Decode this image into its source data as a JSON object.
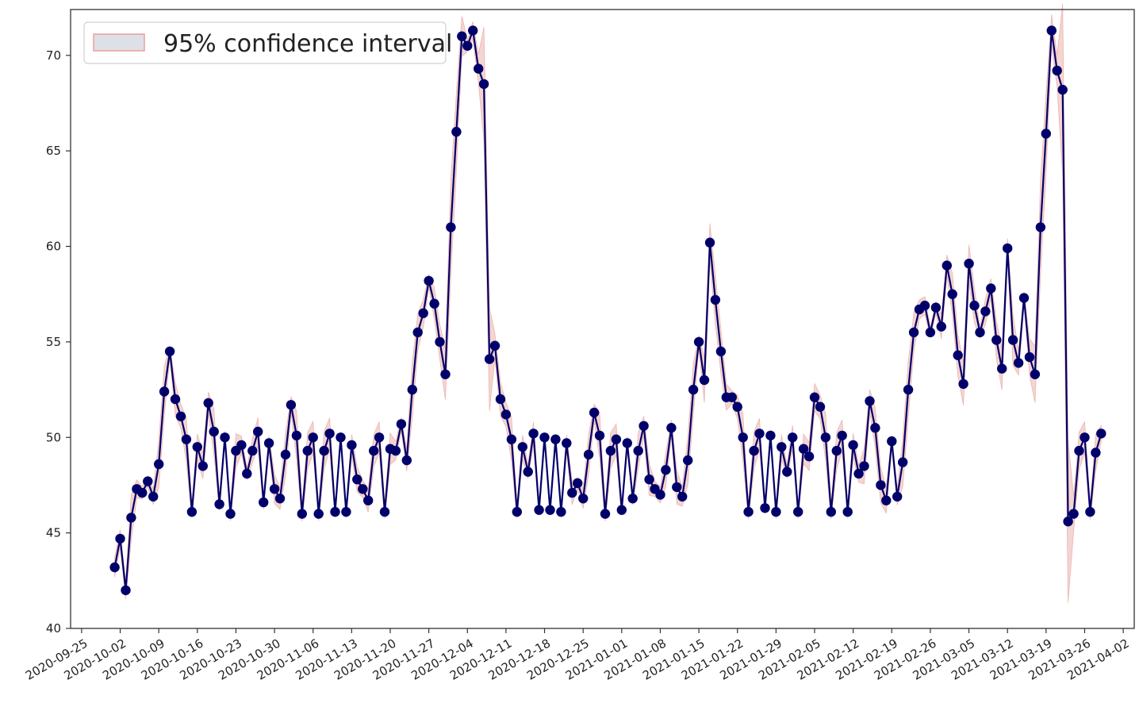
{
  "chart_data": {
    "type": "line",
    "title": "",
    "xlabel": "",
    "ylabel": "",
    "legend": {
      "position": "top-left",
      "entries": [
        "95% confidence interval"
      ]
    },
    "grid": false,
    "xlim": [
      "2020-09-23",
      "2021-04-04"
    ],
    "ylim": [
      40,
      72.4
    ],
    "x_ticks": [
      "2020-09-25",
      "2020-10-02",
      "2020-10-09",
      "2020-10-16",
      "2020-10-23",
      "2020-10-30",
      "2020-11-06",
      "2020-11-13",
      "2020-11-20",
      "2020-11-27",
      "2020-12-04",
      "2020-12-11",
      "2020-12-18",
      "2020-12-25",
      "2021-01-01",
      "2021-01-08",
      "2021-01-15",
      "2021-01-22",
      "2021-01-29",
      "2021-02-05",
      "2021-02-12",
      "2021-02-19",
      "2021-02-26",
      "2021-03-05",
      "2021-03-12",
      "2021-03-19",
      "2021-03-26",
      "2021-04-02"
    ],
    "y_ticks": [
      40,
      45,
      50,
      55,
      60,
      65,
      70
    ],
    "x_start": "2020-10-01",
    "series": [
      {
        "line_color": "#00006b",
        "ci_color": "#e8a09a",
        "values": [
          43.2,
          44.7,
          42.0,
          45.8,
          47.3,
          47.1,
          47.7,
          46.9,
          48.6,
          52.4,
          54.5,
          52.0,
          51.1,
          49.9,
          46.1,
          49.5,
          48.5,
          51.8,
          50.3,
          46.5,
          50.0,
          46.0,
          49.3,
          49.6,
          48.1,
          49.3,
          50.3,
          46.6,
          49.7,
          47.3,
          46.8,
          49.1,
          51.7,
          50.1,
          46.0,
          49.3,
          50.0,
          46.0,
          49.3,
          50.2,
          46.1,
          50.0,
          46.1,
          49.6,
          47.8,
          47.3,
          46.7,
          49.3,
          50.0,
          46.1,
          49.4,
          49.3,
          50.7,
          48.8,
          52.5,
          55.5,
          56.5,
          58.2,
          57.0,
          55.0,
          53.3,
          61.0,
          66.0,
          71.0,
          70.5,
          71.3,
          69.3,
          68.5,
          54.1,
          54.8,
          52.0,
          51.2,
          49.9,
          46.1,
          49.5,
          48.2,
          50.2,
          46.2,
          50.0,
          46.2,
          49.9,
          46.1,
          49.7,
          47.1,
          47.6,
          46.8,
          49.1,
          51.3,
          50.1,
          46.0,
          49.3,
          49.9,
          46.2,
          49.7,
          46.8,
          49.3,
          50.6,
          47.8,
          47.3,
          47.0,
          48.3,
          50.5,
          47.4,
          46.9,
          48.8,
          52.5,
          55.0,
          53.0,
          60.2,
          57.2,
          54.5,
          52.1,
          52.1,
          51.6,
          50.0,
          46.1,
          49.3,
          50.2,
          46.3,
          50.1,
          46.1,
          49.5,
          48.2,
          50.0,
          46.1,
          49.4,
          49.0,
          52.1,
          51.6,
          50.0,
          46.1,
          49.3,
          50.1,
          46.1,
          49.6,
          48.1,
          48.5,
          51.9,
          50.5,
          47.5,
          46.7,
          49.8,
          46.9,
          48.7,
          52.5,
          55.5,
          56.7,
          56.9,
          55.5,
          56.8,
          55.8,
          59.0,
          57.5,
          54.3,
          52.8,
          59.1,
          56.9,
          55.5,
          56.6,
          57.8,
          55.1,
          53.6,
          59.9,
          55.1,
          53.9,
          57.3,
          54.2,
          53.3,
          61.0,
          65.9,
          71.3,
          69.2,
          68.2,
          45.6,
          46.0,
          49.3,
          50.0,
          46.1,
          49.2,
          50.2
        ]
      }
    ]
  }
}
